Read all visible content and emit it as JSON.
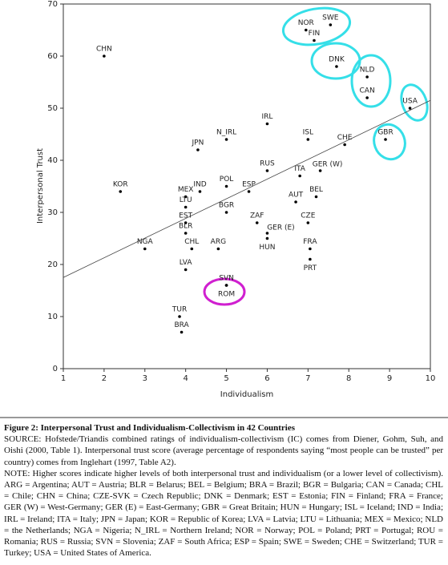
{
  "chart_data": {
    "type": "scatter",
    "x_label": "Individualism",
    "y_label": "Interpersonal Trust",
    "labels": [
      "CHN",
      "KOR",
      "NGA",
      "MEX",
      "IND",
      "LTU",
      "EST",
      "BLR",
      "CHL",
      "ARG",
      "LVA",
      "TUR",
      "BRA",
      "SVN",
      "ROM",
      "JPN",
      "N_IRL",
      "POL",
      "BGR",
      "ESP",
      "ZAF",
      "GER (E)",
      "HUN",
      "IRL",
      "RUS",
      "ITA",
      "GER (W)",
      "AUT",
      "BEL",
      "CZE",
      "FRA",
      "PRT",
      "ISL",
      "CHE",
      "GBR",
      "USA",
      "CAN",
      "NLD",
      "DNK",
      "NOR",
      "SWE",
      "FIN"
    ],
    "x": [
      2.0,
      2.4,
      3.0,
      4.0,
      4.35,
      4.0,
      4.0,
      4.0,
      4.15,
      4.8,
      4.0,
      3.85,
      3.9,
      5.0,
      5.0,
      4.3,
      5.0,
      5.0,
      5.0,
      5.55,
      5.75,
      6.0,
      6.0,
      6.0,
      6.0,
      6.8,
      7.3,
      6.7,
      7.2,
      7.0,
      7.05,
      7.05,
      7.0,
      7.9,
      8.9,
      9.5,
      8.45,
      8.45,
      7.7,
      6.95,
      7.55,
      7.15
    ],
    "values": [
      60,
      34,
      23,
      33,
      34,
      31,
      28,
      26,
      23,
      23,
      19,
      10,
      7,
      16,
      16,
      42,
      44,
      35,
      30,
      34,
      28,
      26,
      25,
      47,
      38,
      37,
      38,
      32,
      33,
      28,
      23,
      21,
      44,
      43,
      44,
      50,
      52,
      56,
      58,
      65,
      66,
      63
    ],
    "color": "#000000",
    "trend_line": {
      "x": [
        1,
        10
      ],
      "y": [
        17.5,
        51.5
      ]
    },
    "xlim": [
      1,
      10
    ],
    "xticks": [
      1,
      2,
      3,
      4,
      5,
      6,
      7,
      8,
      9,
      10
    ],
    "ylim": [
      0,
      70
    ],
    "yticks": [
      0,
      10,
      20,
      30,
      40,
      50,
      60,
      70
    ]
  },
  "caption": {
    "title": "Figure 2: Interpersonal Trust and Individualism-Collectivism in 42 Countries",
    "source": "SOURCE: Hofstede/Triandis combined ratings of individualism-collectivism (IC) comes from Diener, Gohm, Suh, and Oishi (2000, Table 1). Interpersonal trust score (average percentage of respondents saying “most people can be trusted” per country) comes from Inglehart (1997, Table A2).",
    "note": "NOTE: Higher scores indicate higher levels of both interpersonal trust and individualism (or a lower level of collectivism). ARG = Argentina; AUT = Austria; BLR = Belarus; BEL = Belgium; BRA = Brazil; BGR = Bulgaria; CAN = Canada; CHL = Chile; CHN = China; CZE-SVK = Czech Republic; DNK = Denmark; EST = Estonia; FIN = Finland; FRA = France; GER (W) = West-Germany; GER (E) = East-Germany; GBR = Great Britain; HUN = Hungary; ISL = Iceland; IND = India; IRL = Ireland; ITA = Italy; JPN = Japan; KOR = Republic of Korea; LVA = Latvia; LTU = Lithuania; MEX = Mexico; NLD = the Netherlands; NGA = Nigeria; N_IRL = Northern Ireland; NOR = Norway; POL = Poland; PRT = Portugal; ROU = Romania; RUS = Russia; SVN = Slovenia; ZAF = South Africa; ESP = Spain; SWE = Sweden; CHE = Switzerland; TUR = Turkey; USA = United States of America."
  }
}
